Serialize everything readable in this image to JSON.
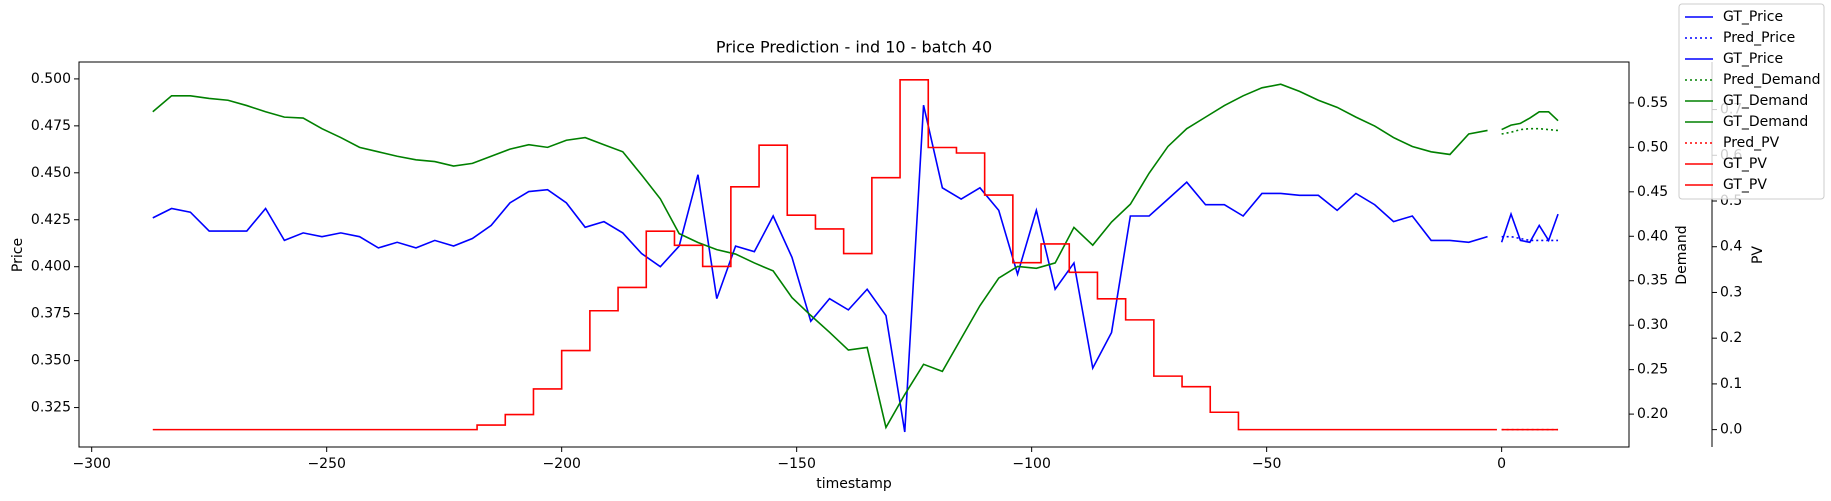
{
  "chart_data": {
    "type": "line",
    "title": "Price Prediction - ind 10 - batch 40",
    "xlabel": "timestamp",
    "ylabel": "Price",
    "y2label": "Demand",
    "y3label": "PV",
    "xlim": [
      -302.7,
      27.1
    ],
    "xticks": [
      {
        "value": -300,
        "label": "−300"
      },
      {
        "value": -250,
        "label": "−250"
      },
      {
        "value": -200,
        "label": "−200"
      },
      {
        "value": -150,
        "label": "−150"
      },
      {
        "value": -100,
        "label": "−100"
      },
      {
        "value": -50,
        "label": "−50"
      },
      0
    ],
    "ylim": [
      0.304,
      0.509
    ],
    "yticks": [
      0.325,
      {
        "value": 0.35,
        "label": "0.350"
      },
      0.375,
      {
        "value": 0.4,
        "label": "0.400"
      },
      0.425,
      {
        "value": 0.45,
        "label": "0.450"
      },
      0.475,
      {
        "value": 0.5,
        "label": "0.500"
      }
    ],
    "y2lim": [
      0.163,
      0.596
    ],
    "y2ticks": [
      {
        "value": 0.2,
        "label": "0.20"
      },
      0.25,
      {
        "value": 0.3,
        "label": "0.30"
      },
      0.35,
      {
        "value": 0.4,
        "label": "0.40"
      },
      0.45,
      {
        "value": 0.5,
        "label": "0.50"
      },
      0.55
    ],
    "y3lim": [
      -0.038,
      0.804
    ],
    "y3ticks": [
      {
        "value": 0,
        "label": "0.0"
      },
      0.1,
      0.2,
      0.3,
      0.4,
      0.5,
      0.6,
      0.7
    ],
    "y_color": "#0000ff",
    "y2_color": "#008000",
    "y3_color": "#ff0000",
    "series": [
      {
        "name": "GT_Price",
        "color": "#0000ff",
        "axis": "y",
        "linestyle": "solid",
        "x": [
          -287,
          -283,
          -279,
          -275,
          -271,
          -267,
          -263,
          -259,
          -255,
          -251,
          -247,
          -243,
          -239,
          -235,
          -231,
          -227,
          -223,
          -219,
          -215,
          -211,
          -207,
          -203,
          -199,
          -195,
          -191,
          -187,
          -183,
          -179,
          -175,
          -171,
          -167,
          -163,
          -159,
          -155,
          -151,
          -147,
          -143,
          -139,
          -135,
          -131,
          -127,
          -123,
          -119,
          -115,
          -111,
          -107,
          -103,
          -99,
          -95,
          -91,
          -87,
          -83,
          -79,
          -75,
          -71,
          -67,
          -63,
          -59,
          -55,
          -51,
          -47,
          -43,
          -39,
          -35,
          -31,
          -27,
          -23,
          -19,
          -15,
          -11,
          -7,
          -3
        ],
        "values": [
          0.426,
          0.431,
          0.429,
          0.419,
          0.419,
          0.419,
          0.431,
          0.414,
          0.418,
          0.416,
          0.418,
          0.416,
          0.41,
          0.413,
          0.41,
          0.414,
          0.411,
          0.415,
          0.422,
          0.434,
          0.44,
          0.441,
          0.434,
          0.421,
          0.424,
          0.418,
          0.407,
          0.4,
          0.411,
          0.449,
          0.383,
          0.411,
          0.408,
          0.427,
          0.405,
          0.371,
          0.383,
          0.377,
          0.388,
          0.374,
          0.312,
          0.486,
          0.442,
          0.436,
          0.442,
          0.43,
          0.396,
          0.43,
          0.388,
          0.402,
          0.346,
          0.365,
          0.427,
          0.427,
          0.436,
          0.445,
          0.433,
          0.433,
          0.427,
          0.439,
          0.439,
          0.438,
          0.438,
          0.43,
          0.439,
          0.433,
          0.424,
          0.427,
          0.414,
          0.414,
          0.413,
          0.416
        ]
      },
      {
        "name": "Pred_Price",
        "color": "#0000ff",
        "axis": "y",
        "linestyle": "dotted",
        "x": [
          0,
          2,
          4,
          6,
          8,
          10,
          12
        ],
        "values": [
          0.416,
          0.416,
          0.415,
          0.414,
          0.414,
          0.414,
          0.414
        ]
      },
      {
        "name": "GT_Price",
        "color": "#0000ff",
        "axis": "y",
        "linestyle": "solid",
        "x": [
          0,
          2,
          4,
          6,
          8,
          10,
          12
        ],
        "values": [
          0.413,
          0.428,
          0.414,
          0.413,
          0.422,
          0.414,
          0.428
        ]
      },
      {
        "name": "Pred_Demand",
        "color": "#008000",
        "axis": "y2",
        "linestyle": "dotted",
        "x": [
          0,
          2,
          4,
          6,
          8,
          10,
          12
        ],
        "values": [
          0.515,
          0.517,
          0.52,
          0.521,
          0.521,
          0.52,
          0.519
        ]
      },
      {
        "name": "GT_Demand",
        "color": "#008000",
        "axis": "y2",
        "linestyle": "solid",
        "x": [
          -287,
          -283,
          -279,
          -275,
          -271,
          -267,
          -263,
          -259,
          -255,
          -251,
          -247,
          -243,
          -239,
          -235,
          -231,
          -227,
          -223,
          -219,
          -215,
          -211,
          -207,
          -203,
          -199,
          -195,
          -191,
          -187,
          -183,
          -179,
          -175,
          -171,
          -167,
          -163,
          -159,
          -155,
          -151,
          -147,
          -143,
          -139,
          -135,
          -131,
          -127,
          -123,
          -119,
          -115,
          -111,
          -107,
          -103,
          -99,
          -95,
          -91,
          -87,
          -83,
          -79,
          -75,
          -71,
          -67,
          -63,
          -59,
          -55,
          -51,
          -47,
          -43,
          -39,
          -35,
          -31,
          -27,
          -23,
          -19,
          -15,
          -11,
          -7,
          -3
        ],
        "values": [
          0.54,
          0.558,
          0.558,
          0.555,
          0.553,
          0.547,
          0.54,
          0.534,
          0.533,
          0.521,
          0.511,
          0.5,
          0.495,
          0.49,
          0.486,
          0.484,
          0.479,
          0.482,
          0.49,
          0.498,
          0.503,
          0.5,
          0.508,
          0.511,
          0.503,
          0.495,
          0.469,
          0.442,
          0.403,
          0.393,
          0.385,
          0.38,
          0.37,
          0.361,
          0.331,
          0.311,
          0.292,
          0.272,
          0.275,
          0.185,
          0.222,
          0.256,
          0.248,
          0.285,
          0.322,
          0.353,
          0.366,
          0.364,
          0.37,
          0.41,
          0.39,
          0.416,
          0.436,
          0.471,
          0.501,
          0.521,
          0.534,
          0.547,
          0.558,
          0.567,
          0.571,
          0.563,
          0.553,
          0.545,
          0.534,
          0.524,
          0.511,
          0.501,
          0.495,
          0.492,
          0.515,
          0.519
        ]
      },
      {
        "name": "GT_Demand",
        "color": "#008000",
        "axis": "y2",
        "linestyle": "solid",
        "x": [
          0,
          2,
          4,
          6,
          8,
          10,
          12
        ],
        "values": [
          0.52,
          0.525,
          0.527,
          0.533,
          0.54,
          0.54,
          0.53
        ]
      },
      {
        "name": "Pred_PV",
        "color": "#ff0000",
        "axis": "y3",
        "linestyle": "dotted",
        "x": [
          0,
          6,
          12
        ],
        "values": [
          0,
          0,
          0
        ]
      },
      {
        "name": "GT_PV",
        "color": "#ff0000",
        "axis": "y3",
        "linestyle": "solid",
        "drawstyle": "steps",
        "x": [
          -287,
          -218,
          -212,
          -206,
          -200,
          -194,
          -188,
          -182,
          -176,
          -170,
          -164,
          -158,
          -152,
          -146,
          -140,
          -134,
          -128,
          -122,
          -116,
          -110,
          -104,
          -98,
          -92,
          -86,
          -80,
          -74,
          -68,
          -62,
          -56,
          -1
        ],
        "values": [
          0,
          0.01,
          0.033,
          0.089,
          0.173,
          0.26,
          0.311,
          0.434,
          0.403,
          0.357,
          0.531,
          0.622,
          0.469,
          0.439,
          0.385,
          0.551,
          0.765,
          0.617,
          0.605,
          0.513,
          0.365,
          0.406,
          0.344,
          0.286,
          0.24,
          0.117,
          0.094,
          0.038,
          0,
          0
        ]
      },
      {
        "name": "GT_PV",
        "color": "#ff0000",
        "axis": "y3",
        "linestyle": "solid",
        "drawstyle": "steps",
        "x": [
          0,
          6,
          12
        ],
        "values": [
          0,
          0,
          0
        ]
      }
    ]
  }
}
